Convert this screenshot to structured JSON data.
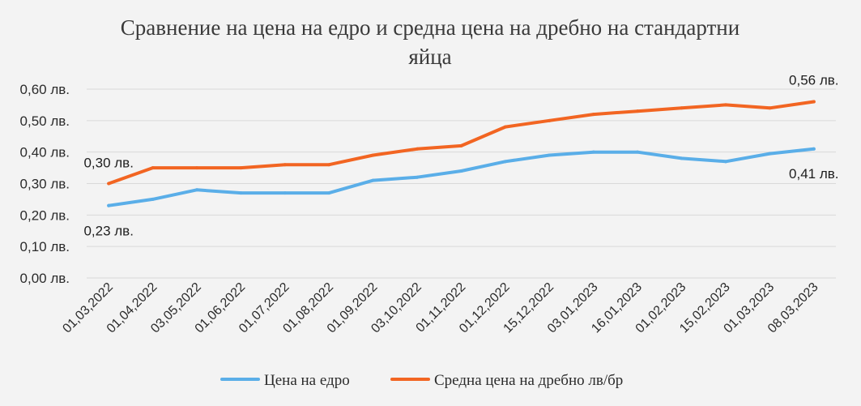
{
  "chart_data": {
    "type": "line",
    "title_line1": "Сравнение на цена на едро и средна цена на дребно на стандартни",
    "title_line2": "яйца",
    "categories": [
      "01,03,2022",
      "01,04,2022",
      "03,05,2022",
      "01,06,2022",
      "01,07,2022",
      "01,08,2022",
      "01,09,2022",
      "03,10,2022",
      "01,11,2022",
      "01,12,2022",
      "15,12,2022",
      "03,01,2023",
      "16,01,2023",
      "01,02,2023",
      "15,02,2023",
      "01,03,2023",
      "08,03,2023"
    ],
    "y_ticks": [
      "0,00 лв.",
      "0,10 лв.",
      "0,20 лв.",
      "0,30 лв.",
      "0,40 лв.",
      "0,50 лв.",
      "0,60 лв."
    ],
    "ylim": [
      0,
      0.6
    ],
    "grid": true,
    "legend_position": "bottom",
    "series": [
      {
        "name": "Цена на едро",
        "color": "#5aaee8",
        "values": [
          0.23,
          0.25,
          0.28,
          0.27,
          0.27,
          0.27,
          0.31,
          0.32,
          0.34,
          0.37,
          0.39,
          0.4,
          0.4,
          0.38,
          0.37,
          0.395,
          0.41
        ],
        "first_label": "0,23 лв.",
        "last_label": "0,41 лв."
      },
      {
        "name": "Средна цена на дребно лв/бр",
        "color": "#f26522",
        "values": [
          0.3,
          0.35,
          0.35,
          0.35,
          0.36,
          0.36,
          0.39,
          0.41,
          0.42,
          0.48,
          0.5,
          0.52,
          0.53,
          0.54,
          0.55,
          0.54,
          0.56
        ],
        "first_label": "0,30 лв.",
        "last_label": "0,56 лв."
      }
    ]
  }
}
